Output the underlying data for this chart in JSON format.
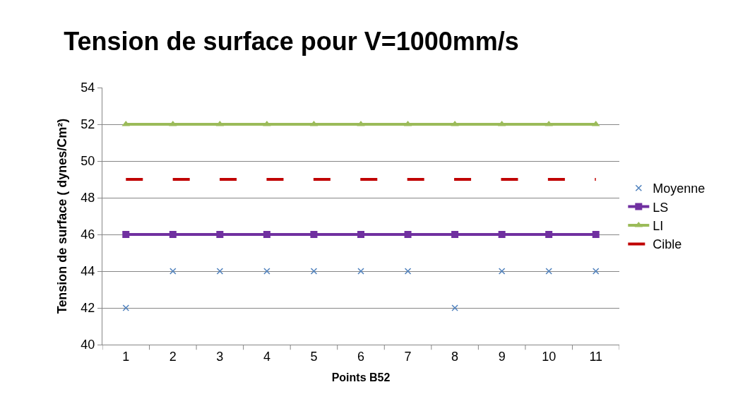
{
  "chart_data": {
    "type": "line",
    "title": "Tension de surface pour V=1000mm/s",
    "xlabel": "Points B52",
    "ylabel": "Tension de surface ( dynes/Cm²)",
    "categories": [
      "1",
      "2",
      "3",
      "4",
      "5",
      "6",
      "7",
      "8",
      "9",
      "10",
      "11"
    ],
    "series": [
      {
        "name": "Moyenne",
        "type": "scatter",
        "marker": "cross",
        "color": "#4f81bd",
        "values": [
          42,
          44,
          44,
          44,
          44,
          44,
          44,
          42,
          44,
          44,
          44
        ]
      },
      {
        "name": "LS",
        "marker": "square",
        "line_style": "solid",
        "color": "#7030a0",
        "values": [
          46,
          46,
          46,
          46,
          46,
          46,
          46,
          46,
          46,
          46,
          46
        ]
      },
      {
        "name": "LI",
        "marker": "triangle",
        "line_style": "solid",
        "color": "#9bbb59",
        "values": [
          52,
          52,
          52,
          52,
          52,
          52,
          52,
          52,
          52,
          52,
          52
        ]
      },
      {
        "name": "Cible",
        "marker": "none",
        "line_style": "dashed",
        "color": "#c00000",
        "values": [
          49,
          49,
          49,
          49,
          49,
          49,
          49,
          49,
          49,
          49,
          49
        ]
      }
    ],
    "ylim": [
      40,
      54
    ],
    "yticks": [
      40,
      42,
      44,
      46,
      48,
      50,
      52,
      54
    ],
    "grid": "y",
    "legend": "right"
  }
}
